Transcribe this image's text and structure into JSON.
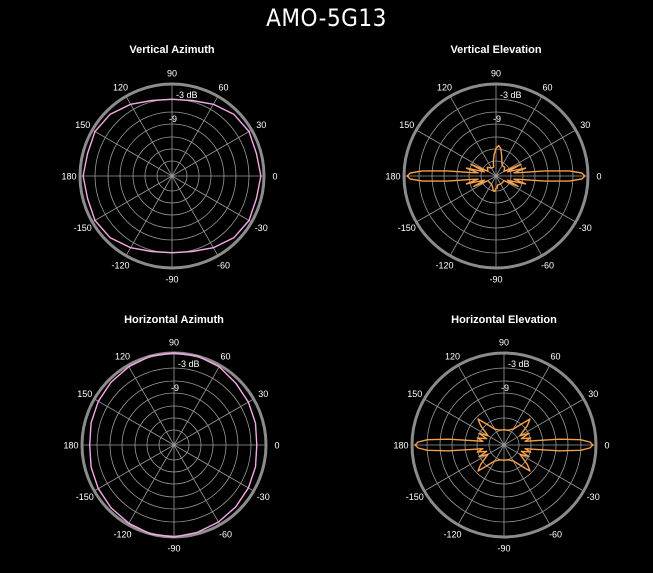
{
  "title": "AMO-5G13",
  "colors": {
    "background": "#000000",
    "grid": "#9a9a9a",
    "outer_ring": "#8c8c8c",
    "azimuth_trace": "#f7a8e6",
    "elevation_trace": "#f7a04a",
    "text": "#ffffff"
  },
  "chart_data": [
    {
      "type": "polar",
      "title": "Vertical Azimuth",
      "angle_ticks": [
        "0",
        "30",
        "60",
        "90",
        "120",
        "150",
        "180",
        "-150",
        "-120",
        "-90",
        "-60",
        "-30"
      ],
      "ring_labels": [
        "-3 dB",
        "-9"
      ],
      "rlim_db": [
        -30,
        0
      ],
      "series": [
        {
          "color": "#f7a8e6",
          "angles_deg": [
            0,
            15,
            30,
            45,
            60,
            75,
            90,
            105,
            120,
            135,
            150,
            165,
            180,
            195,
            210,
            225,
            240,
            255,
            270,
            285,
            300,
            315,
            330,
            345
          ],
          "gain_db": [
            -1,
            -1.5,
            -1,
            -1.5,
            -3,
            -4.5,
            -5,
            -4.5,
            -3,
            -1.5,
            -1,
            -1.5,
            -1,
            -1.5,
            -1,
            -1.5,
            -3,
            -4.5,
            -5,
            -4.5,
            -3,
            -1.5,
            -1,
            -1.5
          ]
        }
      ]
    },
    {
      "type": "polar",
      "title": "Vertical Elevation",
      "angle_ticks": [
        "0",
        "30",
        "60",
        "90",
        "120",
        "150",
        "180",
        "-150",
        "-120",
        "-90",
        "-60",
        "-30"
      ],
      "ring_labels": [
        "-3 dB",
        "-9"
      ],
      "rlim_db": [
        -30,
        0
      ],
      "series": [
        {
          "color": "#f7a04a",
          "angles_deg": [
            0,
            2,
            4,
            6,
            8,
            10,
            15,
            20,
            25,
            30,
            45,
            60,
            75,
            80,
            85,
            90,
            95,
            100,
            105,
            120,
            135,
            150,
            155,
            160,
            165,
            170,
            172,
            174,
            176,
            178,
            180,
            182,
            184,
            186,
            188,
            190,
            195,
            200,
            205,
            210,
            225,
            240,
            255,
            260,
            265,
            270,
            275,
            280,
            285,
            300,
            315,
            330,
            335,
            340,
            345,
            350,
            352,
            354,
            356,
            358
          ],
          "gain_db": [
            -1,
            -2,
            -6,
            -14,
            -22,
            -24,
            -20,
            -26,
            -21,
            -27,
            -26,
            -26,
            -23,
            -21,
            -20,
            -21,
            -23,
            -25,
            -27,
            -27,
            -26,
            -27,
            -21,
            -26,
            -20,
            -24,
            -22,
            -14,
            -6,
            -2,
            -1,
            -2,
            -6,
            -14,
            -22,
            -24,
            -20,
            -26,
            -22,
            -27,
            -27,
            -27,
            -26,
            -25,
            -25,
            -26,
            -26,
            -27,
            -27,
            -27,
            -27,
            -27,
            -22,
            -26,
            -20,
            -24,
            -22,
            -14,
            -6,
            -2
          ]
        }
      ]
    },
    {
      "type": "polar",
      "title": "Horizontal Azimuth",
      "angle_ticks": [
        "0",
        "30",
        "60",
        "90",
        "120",
        "150",
        "180",
        "-150",
        "-120",
        "-90",
        "-60",
        "-30"
      ],
      "ring_labels": [
        "-3 dB",
        "-9"
      ],
      "rlim_db": [
        -30,
        0
      ],
      "series": [
        {
          "color": "#f7a8e6",
          "angles_deg": [
            0,
            15,
            30,
            45,
            60,
            75,
            90,
            105,
            120,
            135,
            150,
            165,
            180,
            195,
            210,
            225,
            240,
            255,
            270,
            285,
            300,
            315,
            330,
            345
          ],
          "gain_db": [
            -3,
            -2.5,
            -2,
            -1.5,
            -0.5,
            0,
            0,
            0,
            -0.5,
            -1,
            -1.5,
            -2,
            -2.5,
            -2,
            -1.5,
            -1,
            -0.5,
            0,
            0,
            -0.5,
            -1,
            -1.5,
            -2,
            -2.5
          ]
        }
      ]
    },
    {
      "type": "polar",
      "title": "Horizontal Elevation",
      "angle_ticks": [
        "0",
        "30",
        "60",
        "90",
        "120",
        "150",
        "180",
        "-150",
        "-120",
        "-90",
        "-60",
        "-30"
      ],
      "ring_labels": [
        "-3 dB",
        "-9"
      ],
      "rlim_db": [
        -30,
        0
      ],
      "series": [
        {
          "color": "#f7a04a",
          "angles_deg": [
            0,
            2,
            4,
            6,
            8,
            10,
            15,
            20,
            25,
            30,
            40,
            45,
            50,
            60,
            75,
            90,
            105,
            120,
            130,
            135,
            140,
            150,
            155,
            160,
            165,
            170,
            172,
            174,
            176,
            178,
            180,
            182,
            184,
            186,
            188,
            190,
            195,
            200,
            205,
            210,
            220,
            225,
            230,
            240,
            255,
            270,
            285,
            300,
            310,
            315,
            320,
            330,
            335,
            340,
            345,
            350,
            352,
            354,
            356,
            358
          ],
          "gain_db": [
            -1,
            -2,
            -5,
            -12,
            -20,
            -23,
            -21,
            -24,
            -21,
            -24,
            -20,
            -18,
            -21,
            -24,
            -25,
            -25,
            -25,
            -24,
            -21,
            -18,
            -20,
            -24,
            -21,
            -24,
            -21,
            -23,
            -20,
            -12,
            -5,
            -2,
            -1,
            -2,
            -5,
            -12,
            -20,
            -23,
            -21,
            -24,
            -21,
            -24,
            -20,
            -18,
            -21,
            -24,
            -25,
            -25,
            -25,
            -24,
            -21,
            -18,
            -20,
            -24,
            -21,
            -24,
            -21,
            -23,
            -20,
            -12,
            -5,
            -2
          ]
        }
      ]
    }
  ]
}
